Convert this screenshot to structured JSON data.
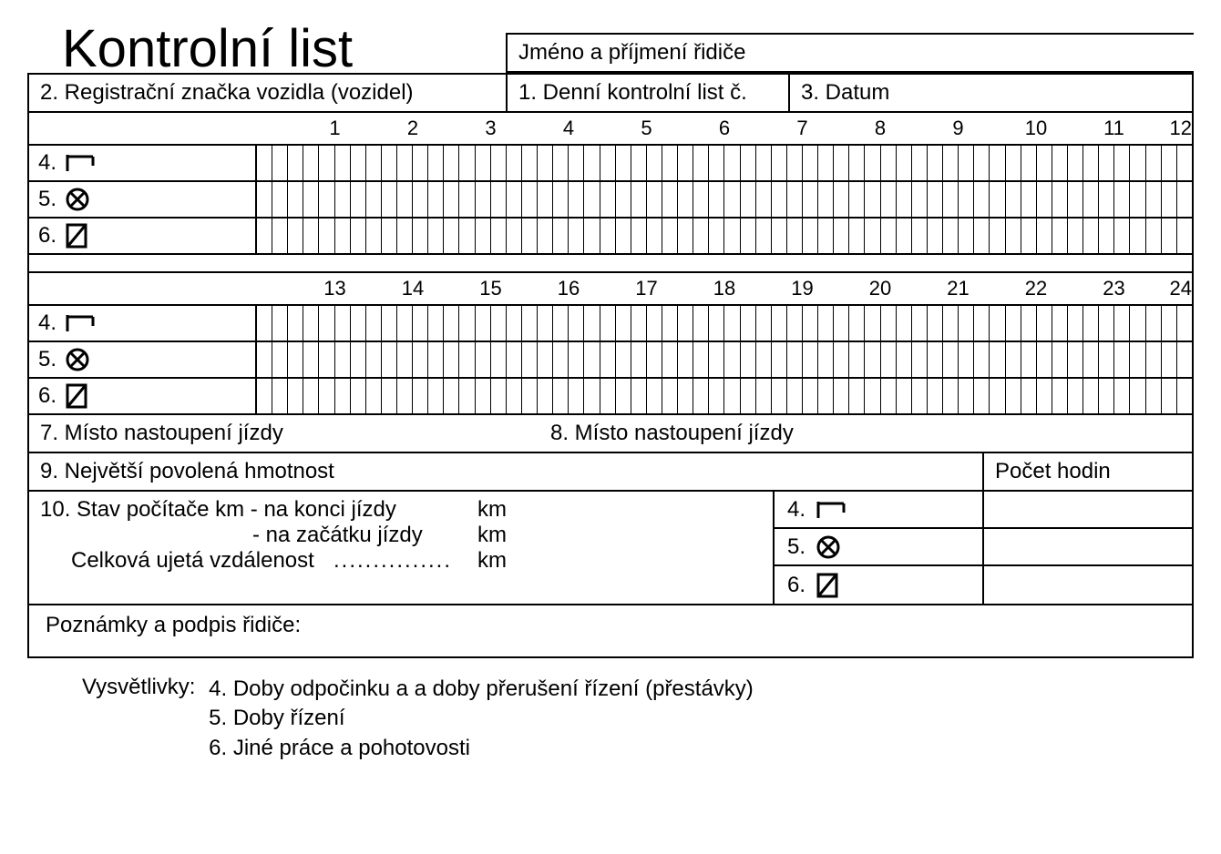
{
  "title": "Kontrolní list",
  "header": {
    "driver_name": "Jméno a příjmení řidiče",
    "reg": "2. Registrační značka vozidla (vozidel)",
    "daily_no": "1. Denní kontrolní list č.",
    "date": "3. Datum"
  },
  "grid": {
    "subdivisions": 5,
    "block1": {
      "hours": [
        1,
        2,
        3,
        4,
        5,
        6,
        7,
        8,
        9,
        10,
        11,
        12
      ]
    },
    "block2": {
      "hours": [
        13,
        14,
        15,
        16,
        17,
        18,
        19,
        20,
        21,
        22,
        23,
        24
      ]
    },
    "rows": [
      {
        "num": "4.",
        "icon": "bed"
      },
      {
        "num": "5.",
        "icon": "wheel"
      },
      {
        "num": "6.",
        "icon": "slashbox"
      }
    ]
  },
  "row7": {
    "a": "7. Místo nastoupení jízdy",
    "b": "8. Místo nastoupení jízdy"
  },
  "row9": {
    "a": "9. Největší povolená hmotnost",
    "b": "Počet hodin"
  },
  "row10": {
    "l1a": "10. Stav počítače km - na konci jízdy",
    "l1b": "km",
    "l2a": "- na začátku jízdy",
    "l2b": "km",
    "l3a": "Celková ujetá vzdálenost",
    "l3dots": "...............",
    "l3b": "km",
    "mid": [
      {
        "num": "4.",
        "icon": "bed"
      },
      {
        "num": "5.",
        "icon": "wheel"
      },
      {
        "num": "6.",
        "icon": "slashbox"
      }
    ]
  },
  "row11": "Poznámky a podpis řidiče:",
  "legend": {
    "hdr": "Vysvětlivky:",
    "items": [
      "4. Doby odpočinku a a doby přerušení řízení (přestávky)",
      "5. Doby řízení",
      "6. Jiné práce a pohotovosti"
    ]
  },
  "style": {
    "border_color": "#000000",
    "background": "#ffffff",
    "font": "Arial",
    "title_fontsize": 58,
    "body_fontsize": 24
  }
}
